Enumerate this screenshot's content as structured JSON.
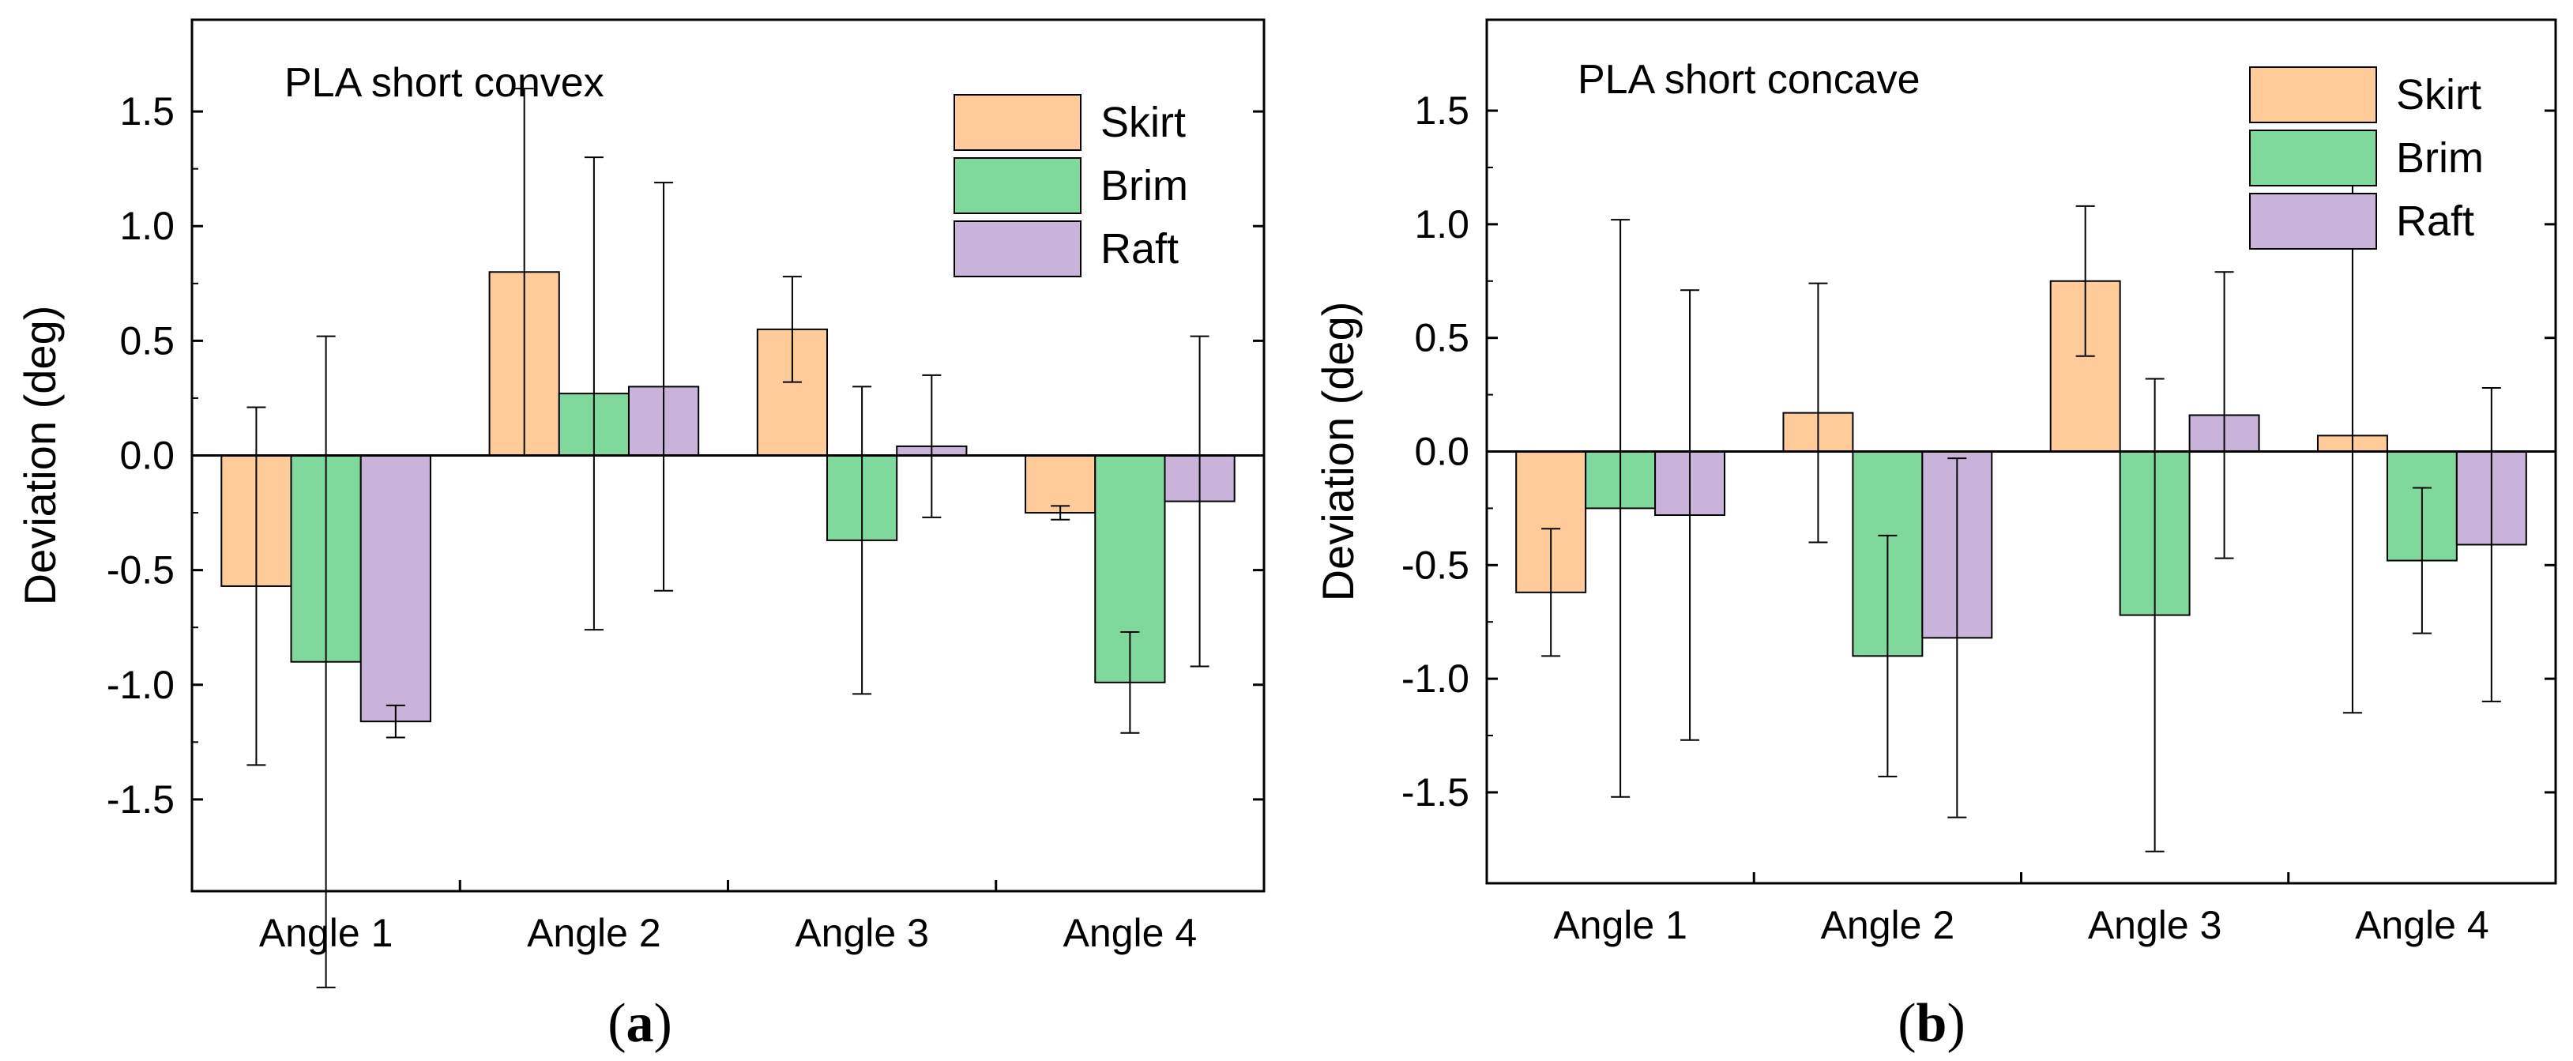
{
  "colors": {
    "skirt": "#FFCC99",
    "brim": "#80D99C",
    "raft": "#C9B3DB",
    "axis": "#000000"
  },
  "chart_data": [
    {
      "type": "bar",
      "title": "PLA short convex",
      "caption_letter": "a",
      "xlabel": "",
      "ylabel": "Deviation (deg)",
      "ylim": [
        -1.9,
        1.9
      ],
      "yticks": [
        -1.5,
        -1.0,
        -0.5,
        0.0,
        0.5,
        1.0,
        1.5
      ],
      "ytick_labels": [
        "-1.5",
        "-1.0",
        "-0.5",
        "0.0",
        "0.5",
        "1.0",
        "1.5"
      ],
      "categories": [
        "Angle 1",
        "Angle 2",
        "Angle 3",
        "Angle 4"
      ],
      "legend": [
        "Skirt",
        "Brim",
        "Raft"
      ],
      "legend_position": "top-right",
      "series": [
        {
          "name": "Skirt",
          "values": [
            -0.57,
            0.8,
            0.55,
            -0.25
          ],
          "errors": [
            0.78,
            0.8,
            0.23,
            0.03
          ]
        },
        {
          "name": "Brim",
          "values": [
            -0.9,
            0.27,
            -0.37,
            -0.99
          ],
          "errors": [
            1.42,
            1.03,
            0.67,
            0.22
          ]
        },
        {
          "name": "Raft",
          "values": [
            -1.16,
            0.3,
            0.04,
            -0.2
          ],
          "errors": [
            0.07,
            0.89,
            0.31,
            0.72
          ]
        }
      ]
    },
    {
      "type": "bar",
      "title": "PLA short concave",
      "caption_letter": "b",
      "xlabel": "",
      "ylabel": "Deviation (deg)",
      "ylim": [
        -1.9,
        1.9
      ],
      "yticks": [
        -1.5,
        -1.0,
        -0.5,
        0.0,
        0.5,
        1.0,
        1.5
      ],
      "ytick_labels": [
        "-1.5",
        "-1.0",
        "-0.5",
        "0.0",
        "0.5",
        "1.0",
        "1.5"
      ],
      "categories": [
        "Angle 1",
        "Angle 2",
        "Angle 3",
        "Angle 4"
      ],
      "legend": [
        "Skirt",
        "Brim",
        "Raft"
      ],
      "legend_position": "top-right",
      "series": [
        {
          "name": "Skirt",
          "values": [
            -0.62,
            0.17,
            0.75,
            0.07
          ],
          "errors": [
            0.28,
            0.57,
            0.33,
            1.22
          ]
        },
        {
          "name": "Brim",
          "values": [
            -0.25,
            -0.9,
            -0.72,
            -0.48
          ],
          "errors": [
            1.27,
            0.53,
            1.04,
            0.32
          ]
        },
        {
          "name": "Raft",
          "values": [
            -0.28,
            -0.82,
            0.16,
            -0.41
          ],
          "errors": [
            0.99,
            0.79,
            0.63,
            0.69
          ]
        }
      ]
    }
  ]
}
